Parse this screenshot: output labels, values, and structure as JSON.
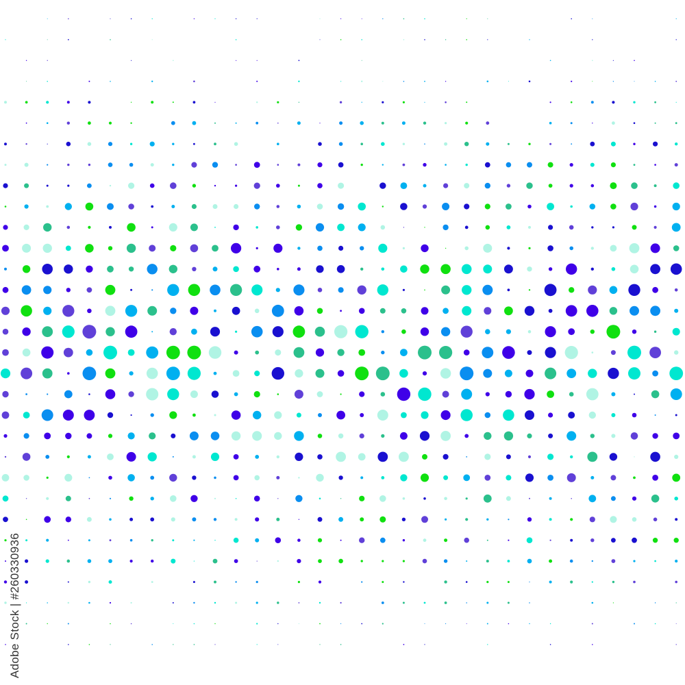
{
  "credit": "Adobe Stock | #260330936",
  "pattern": {
    "style": "halftone dot grid",
    "columns": 33,
    "rows": 32,
    "palette": [
      "#3f00e8",
      "#00e7d0",
      "#2bc08c",
      "#0a8ef0",
      "#00b0f0",
      "#10e010",
      "#6040d8",
      "#b0f4e4",
      "#1a10d0"
    ],
    "background": "#ffffff"
  }
}
